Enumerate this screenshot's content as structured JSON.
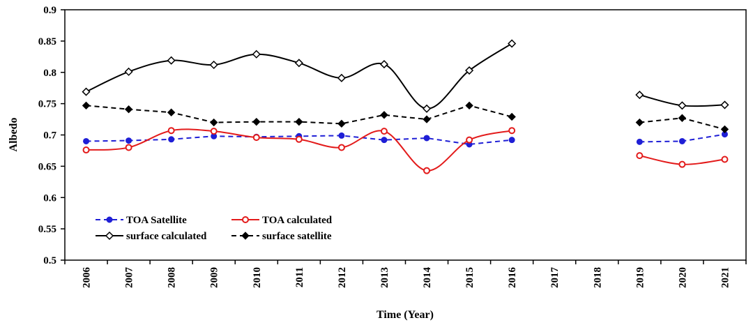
{
  "chart_data": {
    "type": "line",
    "title": "",
    "xlabel": "Time (Year)",
    "ylabel": "Albedo",
    "ylim": [
      0.5,
      0.9
    ],
    "yticks": [
      "0.5",
      "0.55",
      "0.6",
      "0.65",
      "0.7",
      "0.75",
      "0.8",
      "0.85",
      "0.9"
    ],
    "categories": [
      "2006",
      "2007",
      "2008",
      "2009",
      "2010",
      "2011",
      "2012",
      "2013",
      "2014",
      "2015",
      "2016",
      "2017",
      "2018",
      "2019",
      "2020",
      "2021"
    ],
    "legend_position": "bottom-left",
    "series": [
      {
        "name": "TOA Satellite",
        "color": "#1f1fd6",
        "line_style": "dashed",
        "marker": "filled-circle",
        "smooth": false,
        "values": [
          0.69,
          0.691,
          0.693,
          0.698,
          0.697,
          0.698,
          0.699,
          0.692,
          0.695,
          0.685,
          0.692,
          null,
          null,
          0.689,
          0.69,
          0.701
        ]
      },
      {
        "name": "TOA calculated",
        "color": "#e31b1b",
        "line_style": "solid",
        "marker": "open-circle",
        "smooth": true,
        "values": [
          0.676,
          0.68,
          0.707,
          0.706,
          0.696,
          0.693,
          0.68,
          0.706,
          0.643,
          0.692,
          0.707,
          null,
          null,
          0.667,
          0.653,
          0.661
        ]
      },
      {
        "name": "surface calculated",
        "color": "#000000",
        "line_style": "solid",
        "marker": "open-diamond",
        "smooth": true,
        "values": [
          0.769,
          0.801,
          0.819,
          0.812,
          0.829,
          0.815,
          0.791,
          0.813,
          0.742,
          0.803,
          0.846,
          null,
          null,
          0.764,
          0.747,
          0.748
        ]
      },
      {
        "name": "surface satellite",
        "color": "#000000",
        "line_style": "dashed",
        "marker": "filled-diamond",
        "smooth": false,
        "values": [
          0.747,
          0.741,
          0.736,
          0.72,
          0.721,
          0.721,
          0.718,
          0.732,
          0.725,
          0.747,
          0.729,
          null,
          null,
          0.72,
          0.727,
          0.709
        ]
      }
    ]
  }
}
